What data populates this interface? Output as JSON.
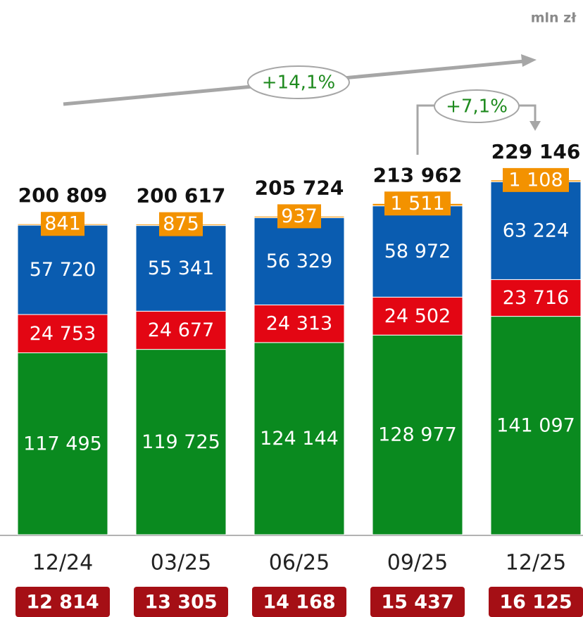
{
  "chart_data": {
    "type": "stacked_bar",
    "unit": "mln zł",
    "categories": [
      "12/24",
      "03/25",
      "06/25",
      "09/25",
      "12/25"
    ],
    "series": [
      {
        "color": "#0a8a1f",
        "values": [
          117495,
          119725,
          124144,
          128977,
          141097
        ],
        "value_labels": [
          "117 495",
          "119 725",
          "124 144",
          "128 977",
          "141 097"
        ]
      },
      {
        "color": "#e30613",
        "values": [
          24753,
          24677,
          24313,
          24502,
          23716
        ],
        "value_labels": [
          "24 753",
          "24 677",
          "24 313",
          "24 502",
          "23 716"
        ]
      },
      {
        "color": "#0a5cb0",
        "values": [
          57720,
          55341,
          56329,
          58972,
          63224
        ],
        "value_labels": [
          "57 720",
          "55 341",
          "56 329",
          "58 972",
          "63 224"
        ]
      },
      {
        "color": "#f39200",
        "values": [
          841,
          875,
          937,
          1511,
          1108
        ],
        "value_labels": [
          "841",
          "875",
          "937",
          "1 511",
          "1 108"
        ]
      }
    ],
    "totals": [
      200809,
      200617,
      205724,
      213962,
      229146
    ],
    "total_labels": [
      "200 809",
      "200 617",
      "205 724",
      "213 962",
      "229 146"
    ],
    "bottom_labels": [
      "12 814",
      "13 305",
      "14 168",
      "15 437",
      "16 125"
    ],
    "bottom_color": "#a50f15",
    "annotations": [
      "+14,1%",
      "+7,1%"
    ]
  }
}
